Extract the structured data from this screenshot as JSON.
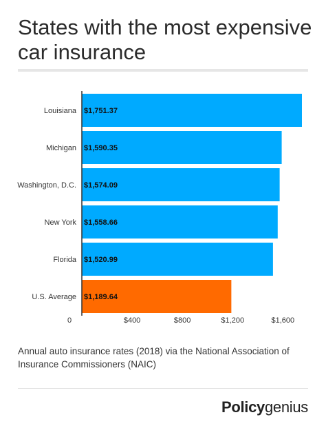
{
  "header": {
    "title": "States with the most expensive car insurance"
  },
  "chart_data": {
    "type": "bar",
    "orientation": "horizontal",
    "title": "States with the most expensive car insurance",
    "categories": [
      "Louisiana",
      "Michigan",
      "Washington, D.C.",
      "New York",
      "Florida",
      "U.S. Average"
    ],
    "values": [
      1751.37,
      1590.35,
      1574.09,
      1558.66,
      1520.99,
      1189.64
    ],
    "value_labels": [
      "$1,751.37",
      "$1,590.35",
      "$1,574.09",
      "$1,558.66",
      "$1,520.99",
      "$1,189.64"
    ],
    "bar_colors": [
      "#00aaff",
      "#00aaff",
      "#00aaff",
      "#00aaff",
      "#00aaff",
      "#ff6a00"
    ],
    "x_ticks": [
      0,
      400,
      800,
      1200,
      1600
    ],
    "x_tick_labels": [
      "0",
      "$400",
      "$800",
      "$1,200",
      "$1,600"
    ],
    "xlim": [
      0,
      1751.37
    ],
    "xlabel": "",
    "ylabel": "",
    "grid": false,
    "legend": "none"
  },
  "footer": {
    "caption": "Annual auto insurance rates (2018) via the National Association of Insurance Commissioners (NAIC)",
    "brand_bold": "Policy",
    "brand_light": "genius"
  },
  "colors": {
    "state_bar": "#00aaff",
    "average_bar": "#ff6a00",
    "text": "#2b2b2b"
  }
}
